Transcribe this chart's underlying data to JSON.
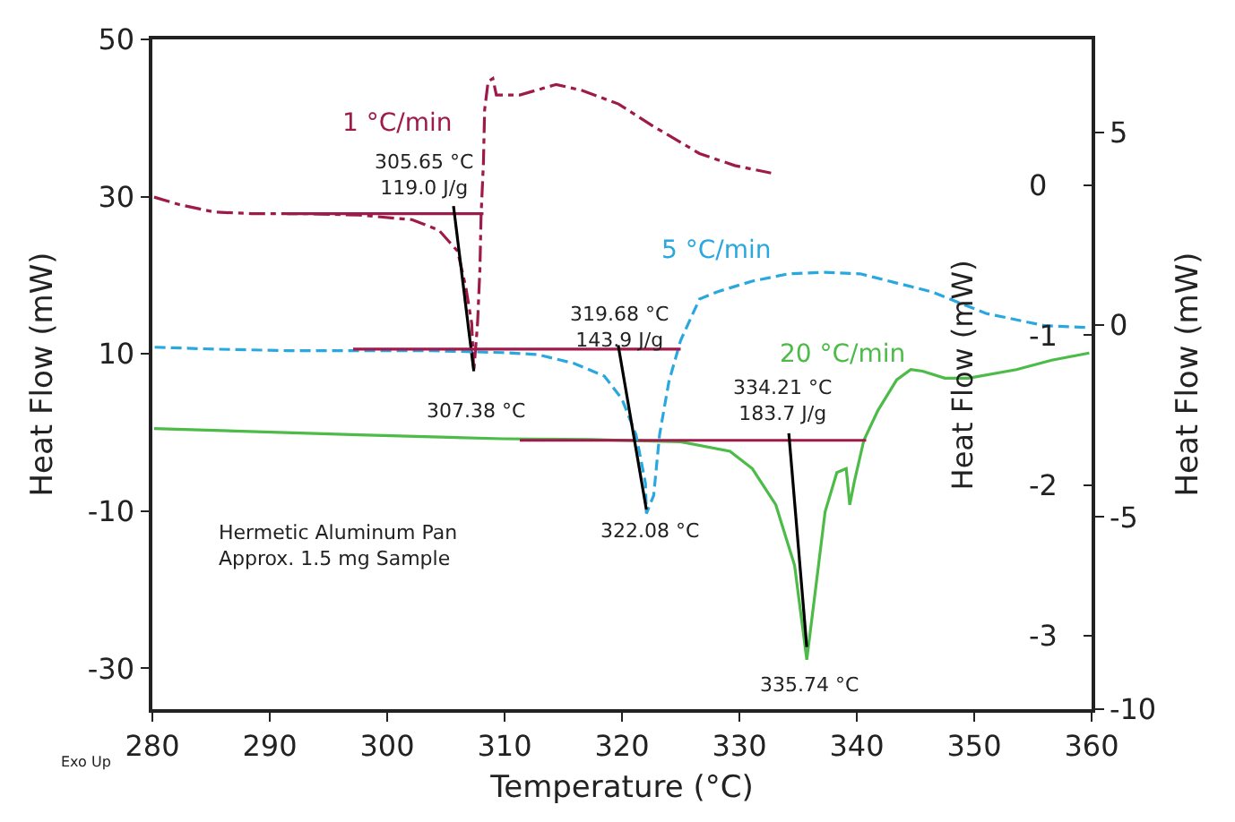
{
  "chart_data": {
    "type": "line",
    "xlabel": "Temperature (°C)",
    "ylabel": "Heat Flow (mW)",
    "y2label": "Heat Flow (mW)",
    "y3label": "Heat Flow (mW)",
    "xlim": [
      280,
      360
    ],
    "xticks": [
      280,
      290,
      300,
      310,
      320,
      330,
      340,
      350,
      360
    ],
    "ylim": [
      -35.2,
      50
    ],
    "yticks": [
      -30,
      -10,
      10,
      30,
      50
    ],
    "y2lim": [
      -3.49,
      0.97
    ],
    "y2ticks": [
      -3,
      -2,
      -1,
      0
    ],
    "y3lim": [
      -10,
      7.43
    ],
    "y3ticks": [
      -10,
      -5,
      0,
      5
    ],
    "legend": false,
    "marker": "none",
    "series": [
      {
        "name": "1 °C/min",
        "color": "#9e1a4a",
        "axis": "y2",
        "line_style": "dashdot",
        "x": [
          280.15,
          282.3,
          285.3,
          288.4,
          293,
          297.6,
          302.1,
          304.4,
          306,
          306.7,
          307.2,
          307.38,
          307.7,
          307.9,
          308.0,
          308.2,
          308.3,
          308.6,
          309,
          309.3,
          311.3,
          314.4,
          316.6,
          319.7,
          322.7,
          326.6,
          329.6,
          332.7
        ],
        "values": [
          -0.08,
          -0.13,
          -0.18,
          -0.19,
          -0.19,
          -0.2,
          -0.23,
          -0.3,
          -0.44,
          -0.68,
          -0.92,
          -1.24,
          -0.92,
          -0.56,
          -0.2,
          0.15,
          0.5,
          0.69,
          0.71,
          0.6,
          0.6,
          0.67,
          0.63,
          0.54,
          0.39,
          0.21,
          0.13,
          0.08
        ]
      },
      {
        "name": "5 °C/min",
        "color": "#29a8e0",
        "axis": "y3",
        "line_style": "dashed",
        "x": [
          280.2,
          285.3,
          291.5,
          297.6,
          303.7,
          309.8,
          312.8,
          315.9,
          318.5,
          320,
          321.2,
          322,
          322.08,
          322.7,
          323.2,
          324,
          325,
          326.6,
          328.1,
          331.1,
          334.2,
          337.3,
          340.3,
          343.4,
          346.4,
          351,
          356,
          359.8
        ],
        "values": [
          -0.58,
          -0.63,
          -0.67,
          -0.67,
          -0.67,
          -0.72,
          -0.77,
          -1.0,
          -1.33,
          -1.93,
          -2.86,
          -4.12,
          -4.91,
          -4.44,
          -2.86,
          -1.47,
          -0.4,
          0.67,
          0.86,
          1.14,
          1.33,
          1.37,
          1.33,
          1.09,
          0.86,
          0.3,
          -0.02,
          -0.07
        ]
      },
      {
        "name": "20 °C/min",
        "color": "#4cbb47",
        "axis": "y",
        "line_style": "solid",
        "x": [
          280.15,
          297.6,
          309.8,
          317.4,
          325,
          329.2,
          331.1,
          333.1,
          334.7,
          335.74,
          336.5,
          337.3,
          338.3,
          339.1,
          339.4,
          339.8,
          340.6,
          341.8,
          343.4,
          344.6,
          345.6,
          347.5,
          349.5,
          353.6,
          356.6,
          359.8
        ],
        "values": [
          0.5,
          -0.3,
          -0.8,
          -0.9,
          -1.2,
          -2.4,
          -4.6,
          -9.2,
          -16.9,
          -28.9,
          -19.8,
          -10.1,
          -5.1,
          -4.6,
          -9.2,
          -6.2,
          -1.0,
          2.8,
          6.7,
          8.0,
          7.8,
          6.9,
          6.9,
          8.0,
          9.2,
          10.1
        ]
      },
      {
        "color": "#9e1a4a",
        "axis": "y2",
        "line_style": "solid",
        "x": [
          291.5,
          308.2
        ],
        "values": [
          -0.19,
          -0.19
        ]
      },
      {
        "color": "#9e1a4a",
        "axis": "y3",
        "line_style": "solid",
        "x": [
          297.1,
          325
        ],
        "values": [
          -0.63,
          -0.63
        ]
      },
      {
        "color": "#9e1a4a",
        "axis": "y",
        "line_style": "solid",
        "x": [
          311.3,
          340.8
        ],
        "values": [
          -1.0,
          -1.0
        ]
      },
      {
        "color": "#000000",
        "axis": "y2",
        "line_style": "solid",
        "x": [
          305.65,
          307.38
        ],
        "values": [
          -0.14,
          -1.24
        ]
      },
      {
        "color": "#000000",
        "axis": "y3",
        "line_style": "solid",
        "x": [
          319.68,
          322.08
        ],
        "values": [
          -0.53,
          -4.81
        ]
      },
      {
        "color": "#000000",
        "axis": "y",
        "line_style": "solid",
        "x": [
          334.21,
          335.74
        ],
        "values": [
          -0.1,
          -27.3
        ]
      }
    ],
    "annotations": [
      "305.65 °C\n119.0 J/g",
      "307.38 °C",
      "319.68 °C\n143.9 J/g",
      "322.08 °C",
      "334.21 °C\n183.7 J/g",
      "335.74 °C",
      "Hermetic Aluminum Pan\nApprox. 1.5 mg Sample",
      "Exo Up"
    ]
  }
}
